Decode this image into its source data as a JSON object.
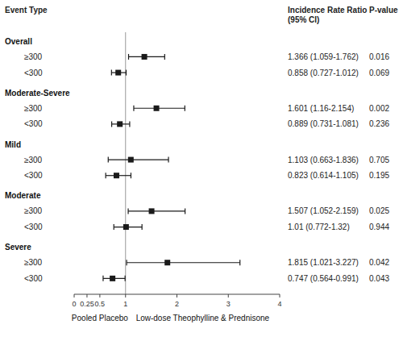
{
  "chart_data": {
    "type": "forest",
    "event_header": "Event Type",
    "estimate_header": "Incidence Rate Ratio\n(95% CI)",
    "pvalue_header": "P-value",
    "color": "#1a1a1a",
    "reference_line": 1,
    "xlim": [
      0,
      4
    ],
    "xticks": [
      0,
      0.25,
      0.5,
      1,
      2,
      3,
      4
    ],
    "xlabel_left": "Pooled Placebo",
    "xlabel_right": "Low-dose Theophylline & Prednisone",
    "sections": [
      {
        "label": "Overall",
        "rows": [
          {
            "subgroup": "≥300",
            "estimate": 1.366,
            "ci_low": 1.059,
            "ci_high": 1.762,
            "text": "1.366 (1.059-1.762)",
            "pvalue": "0.016"
          },
          {
            "subgroup": "<300",
            "estimate": 0.858,
            "ci_low": 0.727,
            "ci_high": 1.012,
            "text": "0.858 (0.727-1.012)",
            "pvalue": "0.069"
          }
        ]
      },
      {
        "label": "Moderate-Severe",
        "rows": [
          {
            "subgroup": "≥300",
            "estimate": 1.601,
            "ci_low": 1.16,
            "ci_high": 2.154,
            "text": "1.601 (1.16-2.154)",
            "pvalue": "0.002"
          },
          {
            "subgroup": "<300",
            "estimate": 0.889,
            "ci_low": 0.731,
            "ci_high": 1.081,
            "text": "0.889 (0.731-1.081)",
            "pvalue": "0.236"
          }
        ]
      },
      {
        "label": "Mild",
        "rows": [
          {
            "subgroup": "≥300",
            "estimate": 1.103,
            "ci_low": 0.663,
            "ci_high": 1.836,
            "text": "1.103 (0.663-1.836)",
            "pvalue": "0.705"
          },
          {
            "subgroup": "<300",
            "estimate": 0.823,
            "ci_low": 0.614,
            "ci_high": 1.105,
            "text": "0.823 (0.614-1.105)",
            "pvalue": "0.195"
          }
        ]
      },
      {
        "label": "Moderate",
        "rows": [
          {
            "subgroup": "≥300",
            "estimate": 1.507,
            "ci_low": 1.052,
            "ci_high": 2.159,
            "text": "1.507 (1.052-2.159)",
            "pvalue": "0.025"
          },
          {
            "subgroup": "<300",
            "estimate": 1.01,
            "ci_low": 0.772,
            "ci_high": 1.32,
            "text": "1.01 (0.772-1.32)",
            "pvalue": "0.944"
          }
        ]
      },
      {
        "label": "Severe",
        "rows": [
          {
            "subgroup": "≥300",
            "estimate": 1.815,
            "ci_low": 1.021,
            "ci_high": 3.227,
            "text": "1.815 (1.021-3.227)",
            "pvalue": "0.042"
          },
          {
            "subgroup": "<300",
            "estimate": 0.747,
            "ci_low": 0.564,
            "ci_high": 0.991,
            "text": "0.747 (0.564-0.991)",
            "pvalue": "0.043"
          }
        ]
      }
    ]
  }
}
